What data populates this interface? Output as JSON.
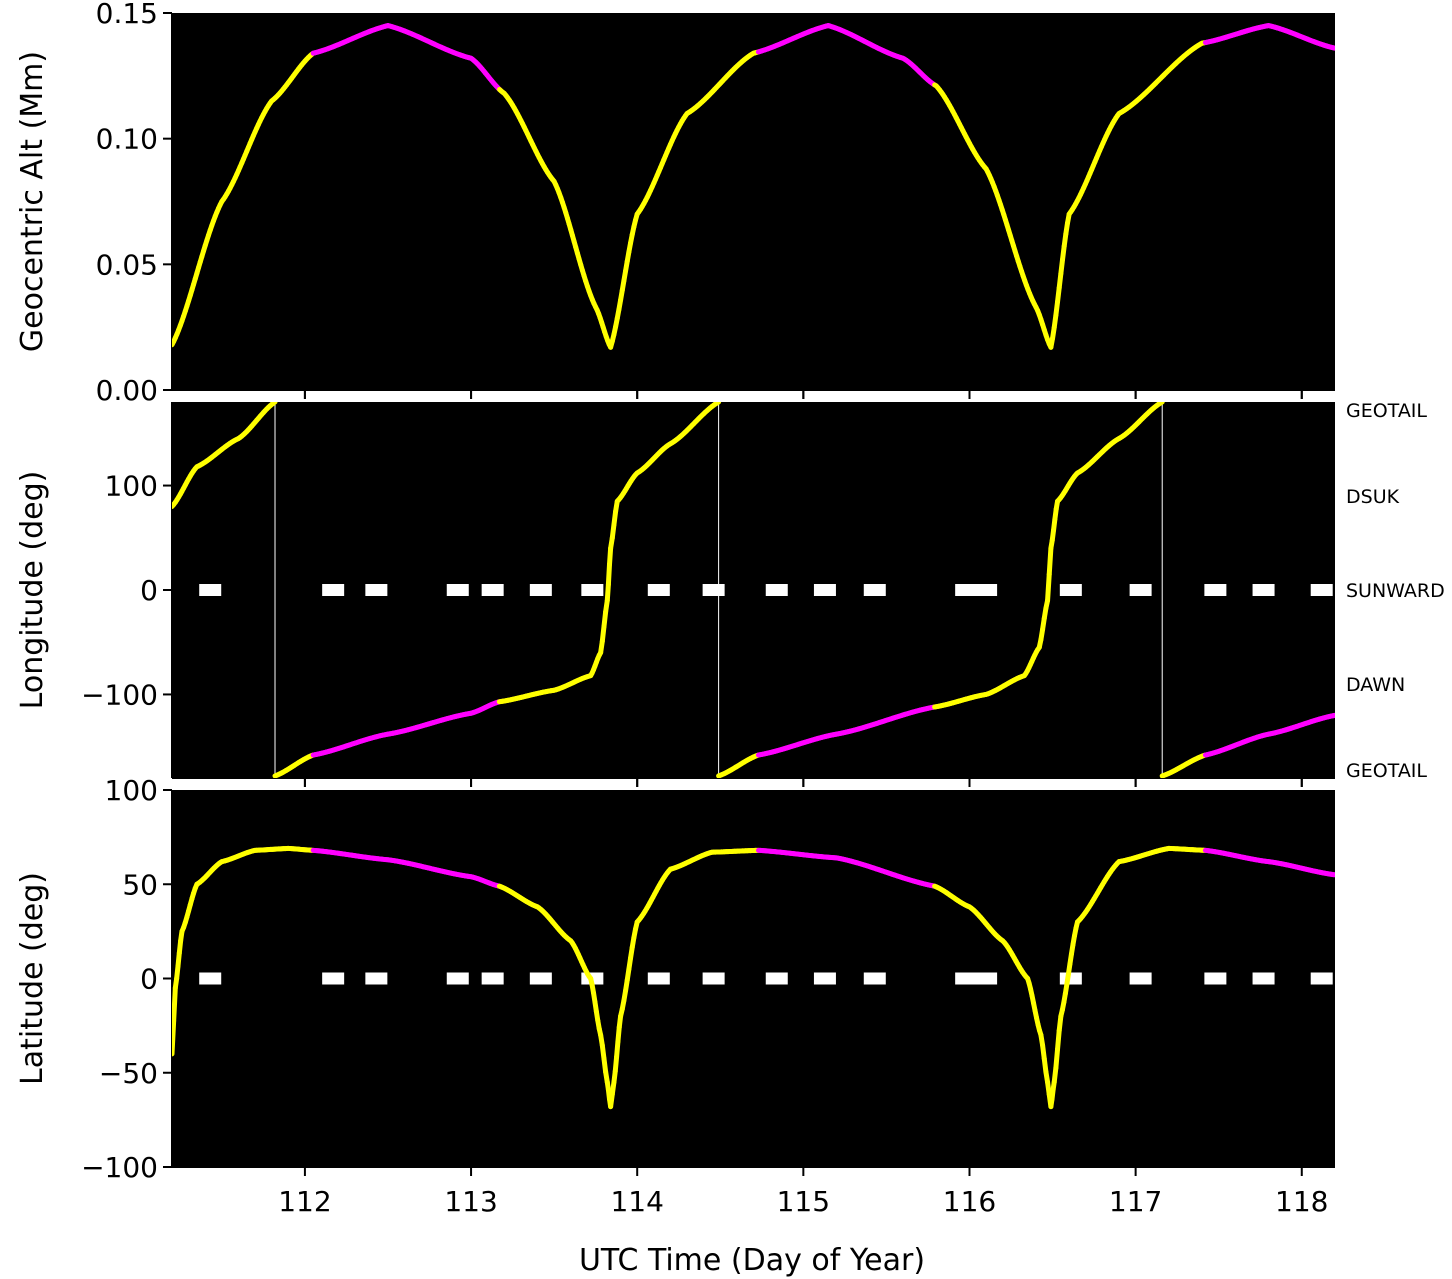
{
  "chart_data": [
    {
      "type": "line",
      "ylabel": "Geocentric Alt (Mm)",
      "xlabel": "",
      "ylim": [
        0.0,
        0.15
      ],
      "xlim": [
        111.2,
        118.2
      ],
      "yticks": [
        "0.00",
        "0.05",
        "0.10",
        "0.15"
      ],
      "background": "#000000",
      "grid": false,
      "series": [
        {
          "color_day": "#ffff00",
          "color_night": "#ff00ff",
          "x": [
            111.2,
            111.5,
            111.8,
            112.05,
            112.5,
            113.0,
            113.2,
            113.5,
            113.75,
            113.84,
            114.0,
            114.3,
            114.7,
            115.15,
            115.6,
            115.8,
            116.1,
            116.4,
            116.49,
            116.6,
            116.9,
            117.4,
            117.8,
            118.2
          ],
          "y": [
            0.018,
            0.075,
            0.115,
            0.134,
            0.145,
            0.132,
            0.118,
            0.083,
            0.033,
            0.017,
            0.07,
            0.11,
            0.134,
            0.145,
            0.132,
            0.121,
            0.088,
            0.033,
            0.017,
            0.07,
            0.11,
            0.138,
            0.145,
            0.136
          ]
        }
      ],
      "night_intervals": [
        [
          112.05,
          113.17
        ],
        [
          114.73,
          115.79
        ],
        [
          117.42,
          118.2
        ]
      ]
    },
    {
      "type": "line",
      "ylabel": "Longitude (deg)",
      "xlabel": "",
      "ylim": [
        -180,
        180
      ],
      "xlim": [
        111.2,
        118.2
      ],
      "yticks": [
        "−100",
        "0",
        "100"
      ],
      "right_labels": [
        "GEOTAIL",
        "DSUK",
        "SUNWARD",
        "DAWN",
        "GEOTAIL"
      ],
      "right_label_values": [
        180,
        90,
        0,
        -90,
        -180
      ],
      "background": "#000000",
      "grid": false,
      "series": [
        {
          "x": [
            111.2,
            111.35,
            111.6,
            111.82,
            111.82,
            112.05,
            112.5,
            113.0,
            113.17,
            113.5,
            113.72,
            113.78,
            113.82,
            113.84,
            113.88,
            114.0,
            114.2,
            114.49,
            114.49,
            114.73,
            115.2,
            115.79,
            116.1,
            116.33,
            116.42,
            116.47,
            116.49,
            116.53,
            116.65,
            116.9,
            117.16,
            117.16,
            117.42,
            117.8,
            118.2
          ],
          "y": [
            80,
            118,
            145,
            180,
            -178,
            -158,
            -138,
            -118,
            -107,
            -96,
            -82,
            -60,
            -10,
            40,
            85,
            112,
            140,
            180,
            -178,
            -158,
            -138,
            -112,
            -100,
            -82,
            -55,
            -10,
            40,
            85,
            112,
            145,
            180,
            -178,
            -158,
            -138,
            -120
          ]
        }
      ],
      "sunward_markers_x": [
        111.43,
        112.17,
        112.43,
        112.92,
        113.13,
        113.42,
        113.73,
        114.13,
        114.46,
        114.84,
        115.13,
        115.43,
        115.98,
        116.1,
        116.61,
        117.03,
        117.48,
        117.77,
        118.12
      ],
      "night_intervals": [
        [
          112.05,
          113.17
        ],
        [
          114.73,
          115.79
        ],
        [
          117.42,
          118.2
        ]
      ]
    },
    {
      "type": "line",
      "ylabel": "Latitude (deg)",
      "xlabel": "UTC Time (Day of Year)",
      "ylim": [
        -100,
        100
      ],
      "xlim": [
        111.2,
        118.2
      ],
      "yticks": [
        "−100",
        "−50",
        "0",
        "50",
        "100"
      ],
      "xticks": [
        "112",
        "113",
        "114",
        "115",
        "116",
        "117",
        "118"
      ],
      "xtick_values": [
        112,
        113,
        114,
        115,
        116,
        117,
        118
      ],
      "background": "#000000",
      "grid": false,
      "series": [
        {
          "x": [
            111.2,
            111.22,
            111.26,
            111.35,
            111.5,
            111.7,
            111.9,
            112.05,
            112.5,
            113.0,
            113.17,
            113.4,
            113.6,
            113.72,
            113.78,
            113.82,
            113.84,
            113.86,
            113.9,
            114.0,
            114.2,
            114.45,
            114.73,
            115.2,
            115.79,
            116.0,
            116.2,
            116.35,
            116.43,
            116.47,
            116.49,
            116.51,
            116.55,
            116.65,
            116.9,
            117.2,
            117.42,
            117.8,
            118.2
          ],
          "y": [
            -40,
            -5,
            25,
            50,
            62,
            68,
            69,
            68,
            63,
            54,
            49,
            38,
            20,
            0,
            -30,
            -55,
            -68,
            -55,
            -20,
            30,
            58,
            67,
            68,
            64,
            49,
            38,
            20,
            0,
            -30,
            -55,
            -68,
            -55,
            -20,
            30,
            62,
            69,
            68,
            62,
            55
          ]
        }
      ],
      "equator_markers_x": [
        111.43,
        112.17,
        112.43,
        112.92,
        113.13,
        113.42,
        113.73,
        114.13,
        114.46,
        114.84,
        115.13,
        115.43,
        115.98,
        116.1,
        116.61,
        117.03,
        117.48,
        117.77,
        118.12
      ],
      "night_intervals": [
        [
          112.05,
          113.17
        ],
        [
          114.73,
          115.79
        ],
        [
          117.42,
          118.2
        ]
      ]
    }
  ]
}
